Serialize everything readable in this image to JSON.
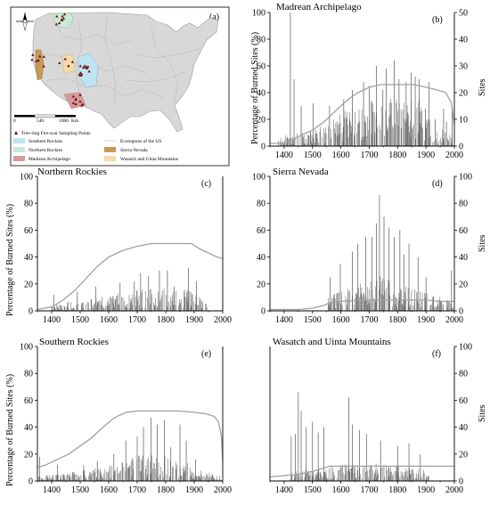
{
  "map": {
    "panel_label": "(a)",
    "scale_labels": [
      "0",
      "540",
      "1080"
    ],
    "scale_unit": "Km",
    "legend_points": "Tree-ring Fire-scar Sampling Points",
    "legend_items": [
      {
        "label": "Southern Rockies",
        "color": "#bfe3f2"
      },
      {
        "label": "Ecoregions of the US",
        "color": null
      },
      {
        "label": "Northern Rockies",
        "color": "#c9ead7"
      },
      {
        "label": "Sierra Nevada",
        "color": "#c79a55"
      },
      {
        "label": "Madrean Archipelago",
        "color": "#d69a9a"
      },
      {
        "label": "Wasatch and Uinta Mountains",
        "color": "#f3dcaa"
      }
    ],
    "colors": {
      "land": "#d8d8d8",
      "point": "#6b0f0f"
    }
  },
  "axis_text": {
    "left_ylabel": "Percentage of Burned Sites (%)",
    "right_ylabel": "Sites"
  },
  "chart_data": [
    {
      "id": "b",
      "type": "bar",
      "panel_label": "(b)",
      "title": "Madrean Archipelago",
      "xlim": [
        1350,
        2000
      ],
      "ylim": [
        0,
        100
      ],
      "y2lim": [
        0,
        50
      ],
      "xticks": [
        1400,
        1500,
        1600,
        1700,
        1800,
        1900,
        2000
      ],
      "yticks": [
        0,
        20,
        40,
        60,
        80,
        100
      ],
      "y2ticks": [
        0,
        10,
        20,
        30,
        40,
        50
      ],
      "sites_curve": {
        "x": [
          1350,
          1400,
          1420,
          1460,
          1500,
          1540,
          1580,
          1620,
          1660,
          1700,
          1740,
          1780,
          1820,
          1860,
          1900,
          1940,
          1970,
          1990,
          2000
        ],
        "y": [
          1,
          1,
          2,
          4,
          6,
          9,
          13,
          17,
          20,
          22,
          23,
          23,
          23,
          23,
          22,
          21,
          20,
          16,
          8
        ]
      },
      "burn_profile": {
        "start": 1380,
        "end": 1995,
        "x": [
          1380,
          1500,
          1560,
          1600,
          1650,
          1700,
          1800,
          1880,
          1900,
          1995
        ],
        "level": [
          6,
          10,
          15,
          20,
          28,
          30,
          32,
          30,
          18,
          6
        ]
      },
      "peaks": [
        [
          1422,
          100
        ],
        [
          1435,
          50
        ],
        [
          1460,
          30
        ],
        [
          1502,
          32
        ],
        [
          1560,
          30
        ],
        [
          1610,
          35
        ],
        [
          1640,
          42
        ],
        [
          1680,
          48
        ],
        [
          1700,
          45
        ],
        [
          1725,
          60
        ],
        [
          1748,
          42
        ],
        [
          1760,
          58
        ],
        [
          1788,
          64
        ],
        [
          1805,
          50
        ],
        [
          1830,
          48
        ],
        [
          1848,
          55
        ],
        [
          1862,
          52
        ],
        [
          1876,
          50
        ],
        [
          1898,
          28
        ],
        [
          1910,
          48
        ],
        [
          1932,
          20
        ],
        [
          1962,
          28
        ],
        [
          1972,
          18
        ],
        [
          1992,
          30
        ]
      ]
    },
    {
      "id": "c",
      "type": "bar",
      "panel_label": "(c)",
      "title": "Northern Rockies",
      "xlim": [
        1350,
        2000
      ],
      "ylim": [
        0,
        100
      ],
      "y2lim": [
        0,
        100
      ],
      "xticks": [
        1400,
        1500,
        1600,
        1700,
        1800,
        1900,
        2000
      ],
      "yticks": [
        0,
        20,
        40,
        60,
        80,
        100
      ],
      "y2ticks": [],
      "sites_curve": {
        "x": [
          1350,
          1400,
          1440,
          1480,
          1520,
          1560,
          1600,
          1650,
          1700,
          1750,
          1800,
          1850,
          1890,
          1920,
          1950,
          1980,
          2000
        ],
        "y": [
          1,
          3,
          8,
          15,
          24,
          33,
          40,
          45,
          48,
          50,
          50,
          50,
          50,
          46,
          43,
          40,
          39
        ]
      },
      "burn_profile": {
        "start": 1400,
        "end": 1945,
        "x": [
          1400,
          1500,
          1600,
          1700,
          1800,
          1880,
          1945
        ],
        "level": [
          4,
          7,
          10,
          13,
          15,
          13,
          6
        ]
      },
      "peaks": [
        [
          1407,
          12
        ],
        [
          1490,
          14
        ],
        [
          1555,
          18
        ],
        [
          1640,
          21
        ],
        [
          1690,
          22
        ],
        [
          1712,
          28
        ],
        [
          1740,
          26
        ],
        [
          1778,
          30
        ],
        [
          1806,
          30
        ],
        [
          1830,
          18
        ],
        [
          1880,
          32
        ],
        [
          1908,
          22
        ]
      ]
    },
    {
      "id": "d",
      "type": "bar",
      "panel_label": "(d)",
      "title": "Sierra Nevada",
      "xlim": [
        1350,
        2000
      ],
      "ylim": [
        0,
        100
      ],
      "y2lim": [
        0,
        100
      ],
      "xticks": [
        1400,
        1500,
        1600,
        1700,
        1800,
        1900,
        2000
      ],
      "yticks": [
        0,
        20,
        40,
        60,
        80,
        100
      ],
      "y2ticks": [
        0,
        20,
        40,
        60,
        80,
        100
      ],
      "sites_curve": {
        "x": [
          1350,
          1450,
          1500,
          1540,
          1560,
          1600,
          1700,
          1800,
          1900,
          1950,
          2000
        ],
        "y": [
          1,
          1,
          2,
          4,
          6,
          7,
          8,
          8,
          8,
          7,
          7
        ]
      },
      "burn_profile": {
        "start": 1555,
        "end": 1995,
        "x": [
          1555,
          1600,
          1650,
          1700,
          1750,
          1800,
          1850,
          1900,
          1950,
          1995
        ],
        "level": [
          10,
          12,
          16,
          20,
          22,
          20,
          16,
          12,
          9,
          6
        ]
      },
      "peaks": [
        [
          1562,
          25
        ],
        [
          1598,
          35
        ],
        [
          1640,
          44
        ],
        [
          1660,
          50
        ],
        [
          1688,
          55
        ],
        [
          1710,
          55
        ],
        [
          1725,
          65
        ],
        [
          1736,
          86
        ],
        [
          1752,
          70
        ],
        [
          1770,
          62
        ],
        [
          1788,
          55
        ],
        [
          1808,
          60
        ],
        [
          1822,
          42
        ],
        [
          1840,
          50
        ],
        [
          1872,
          40
        ],
        [
          1900,
          25
        ],
        [
          1990,
          30
        ]
      ]
    },
    {
      "id": "e",
      "type": "bar",
      "panel_label": "(e)",
      "title": "Southern Rockies",
      "xlim": [
        1350,
        2000
      ],
      "ylim": [
        0,
        100
      ],
      "y2lim": [
        0,
        100
      ],
      "xticks": [
        1400,
        1500,
        1600,
        1700,
        1800,
        1900,
        2000
      ],
      "yticks": [
        0,
        20,
        40,
        60,
        80,
        100
      ],
      "y2ticks": [],
      "sites_curve": {
        "x": [
          1350,
          1380,
          1420,
          1460,
          1500,
          1540,
          1580,
          1620,
          1660,
          1700,
          1760,
          1800,
          1850,
          1900,
          1940,
          1970,
          1985,
          1995,
          2000
        ],
        "y": [
          10,
          12,
          16,
          20,
          26,
          32,
          40,
          47,
          51,
          52,
          52,
          52,
          52,
          51,
          50,
          48,
          44,
          34,
          15
        ]
      },
      "burn_profile": {
        "start": 1355,
        "end": 1995,
        "x": [
          1355,
          1450,
          1550,
          1650,
          1700,
          1800,
          1860,
          1900,
          1995
        ],
        "level": [
          3,
          5,
          8,
          12,
          16,
          16,
          14,
          8,
          3
        ]
      },
      "peaks": [
        [
          1358,
          18
        ],
        [
          1420,
          12
        ],
        [
          1512,
          12
        ],
        [
          1560,
          15
        ],
        [
          1618,
          20
        ],
        [
          1660,
          30
        ],
        [
          1700,
          33
        ],
        [
          1722,
          40
        ],
        [
          1748,
          47
        ],
        [
          1770,
          42
        ],
        [
          1795,
          45
        ],
        [
          1818,
          25
        ],
        [
          1850,
          42
        ],
        [
          1872,
          30
        ],
        [
          1905,
          16
        ]
      ]
    },
    {
      "id": "f",
      "type": "bar",
      "panel_label": "(f)",
      "title": "Wasatch and Uinta Mountains",
      "xlim": [
        1350,
        2000
      ],
      "ylim": [
        0,
        100
      ],
      "y2lim": [
        0,
        100
      ],
      "xticks": [
        1400,
        1500,
        1600,
        1700,
        1800,
        1900,
        2000
      ],
      "yticks": [],
      "y2ticks": [
        0,
        20,
        40,
        60,
        80,
        100
      ],
      "sites_curve": {
        "x": [
          1350,
          1400,
          1450,
          1500,
          1530,
          1560,
          1600,
          1700,
          1800,
          1900,
          2000
        ],
        "y": [
          3,
          4,
          5,
          7,
          9,
          11,
          11,
          11,
          11,
          11,
          11
        ]
      },
      "burn_profile": {
        "start": 1420,
        "end": 1910,
        "x": [
          1420,
          1460,
          1500,
          1550,
          1600,
          1700,
          1800,
          1900,
          1910
        ],
        "level": [
          5,
          8,
          7,
          9,
          10,
          12,
          10,
          8,
          4
        ]
      },
      "peaks": [
        [
          1425,
          33
        ],
        [
          1440,
          35
        ],
        [
          1450,
          66
        ],
        [
          1460,
          52
        ],
        [
          1478,
          40
        ],
        [
          1500,
          44
        ],
        [
          1520,
          36
        ],
        [
          1540,
          40
        ],
        [
          1628,
          62
        ],
        [
          1640,
          42
        ],
        [
          1665,
          38
        ],
        [
          1690,
          35
        ],
        [
          1740,
          30
        ],
        [
          1800,
          26
        ],
        [
          1840,
          28
        ],
        [
          1880,
          20
        ]
      ]
    }
  ]
}
